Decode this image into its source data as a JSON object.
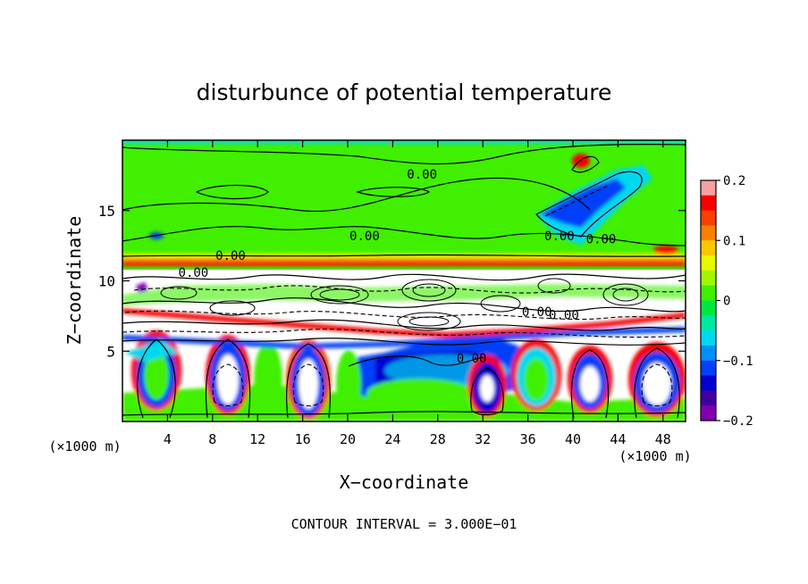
{
  "chart_data": {
    "type": "heatmap",
    "title": "disturbunce of potential temperature",
    "xlabel": "X−coordinate",
    "ylabel": "Z−coordinate",
    "x_unit_label": "(×1000 m)",
    "y_unit_label": "(×1000 m)",
    "footer": "CONTOUR INTERVAL = 3.000E−01",
    "xlim": [
      0,
      50
    ],
    "ylim": [
      0,
      20
    ],
    "x_ticks": [
      4,
      8,
      12,
      16,
      20,
      24,
      28,
      32,
      36,
      40,
      44,
      48
    ],
    "x_tick_labels": [
      "4",
      "8",
      "12",
      "16",
      "20",
      "24",
      "28",
      "32",
      "36",
      "40",
      "44",
      "48"
    ],
    "y_ticks": [
      5,
      10,
      15
    ],
    "y_tick_labels": [
      "5",
      "10",
      "15"
    ],
    "colorbar": {
      "range": [
        -0.2,
        0.2
      ],
      "tick_values": [
        0.2,
        0.1,
        0,
        -0.1,
        -0.2
      ],
      "tick_labels": [
        "0.2",
        "0.1",
        "0",
        "−0.1",
        "−0.2"
      ],
      "colors": [
        "#f8a0a0",
        "#f80000",
        "#f84000",
        "#f88000",
        "#f8c800",
        "#e8f800",
        "#a0f800",
        "#40f000",
        "#00e840",
        "#00e8a0",
        "#00d8f0",
        "#0090f8",
        "#0040f8",
        "#0000d0",
        "#4000a0",
        "#8000b0"
      ]
    },
    "contour_labels": [
      {
        "text": "0.00",
        "x": 26.6,
        "z": 17.6
      },
      {
        "text": "0.00",
        "x": 21.5,
        "z": 13.2
      },
      {
        "text": "0.00",
        "x": 9.6,
        "z": 11.8
      },
      {
        "text": "0.00",
        "x": 38.8,
        "z": 13.2
      },
      {
        "text": "0.00",
        "x": 42.5,
        "z": 13.0
      },
      {
        "text": "0.00",
        "x": 6.3,
        "z": 10.6
      },
      {
        "text": "0.00",
        "x": 36.8,
        "z": 7.8
      },
      {
        "text": "0.00",
        "x": 39.2,
        "z": 7.6
      },
      {
        "text": "0.00",
        "x": 31.0,
        "z": 4.5
      }
    ]
  }
}
